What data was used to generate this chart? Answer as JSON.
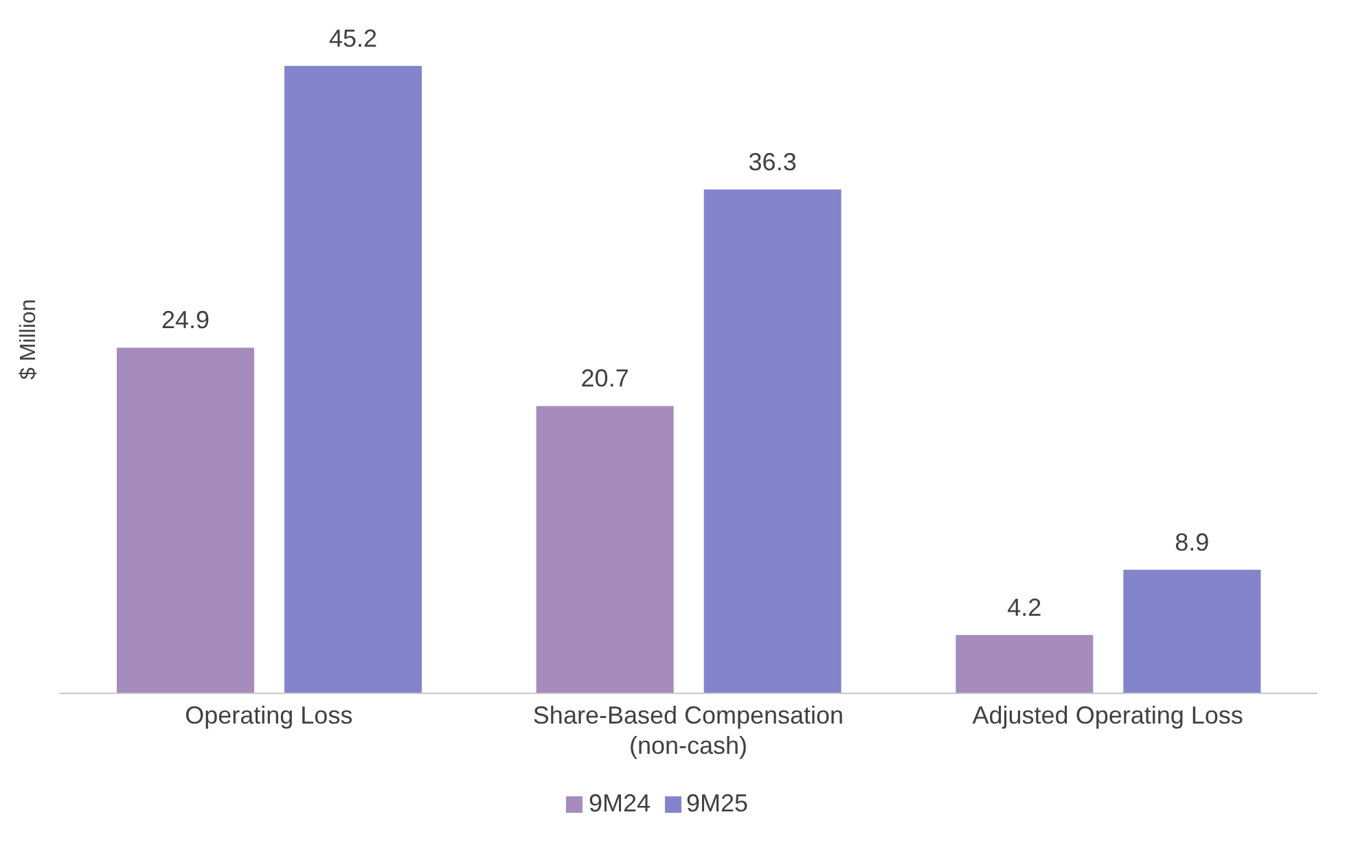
{
  "chart_data": {
    "type": "bar",
    "ylabel": "$ Million",
    "categories": [
      "Operating Loss",
      "Share-Based Compensation\n(non-cash)",
      "Adjusted Operating Loss"
    ],
    "series": [
      {
        "name": "9M24",
        "color": "#a68cbc",
        "values": [
          24.9,
          20.7,
          4.2
        ]
      },
      {
        "name": "9M25",
        "color": "#8484cc",
        "values": [
          45.2,
          36.3,
          8.9
        ]
      }
    ],
    "data_labels": true,
    "legend": "bottom",
    "grid": false
  }
}
